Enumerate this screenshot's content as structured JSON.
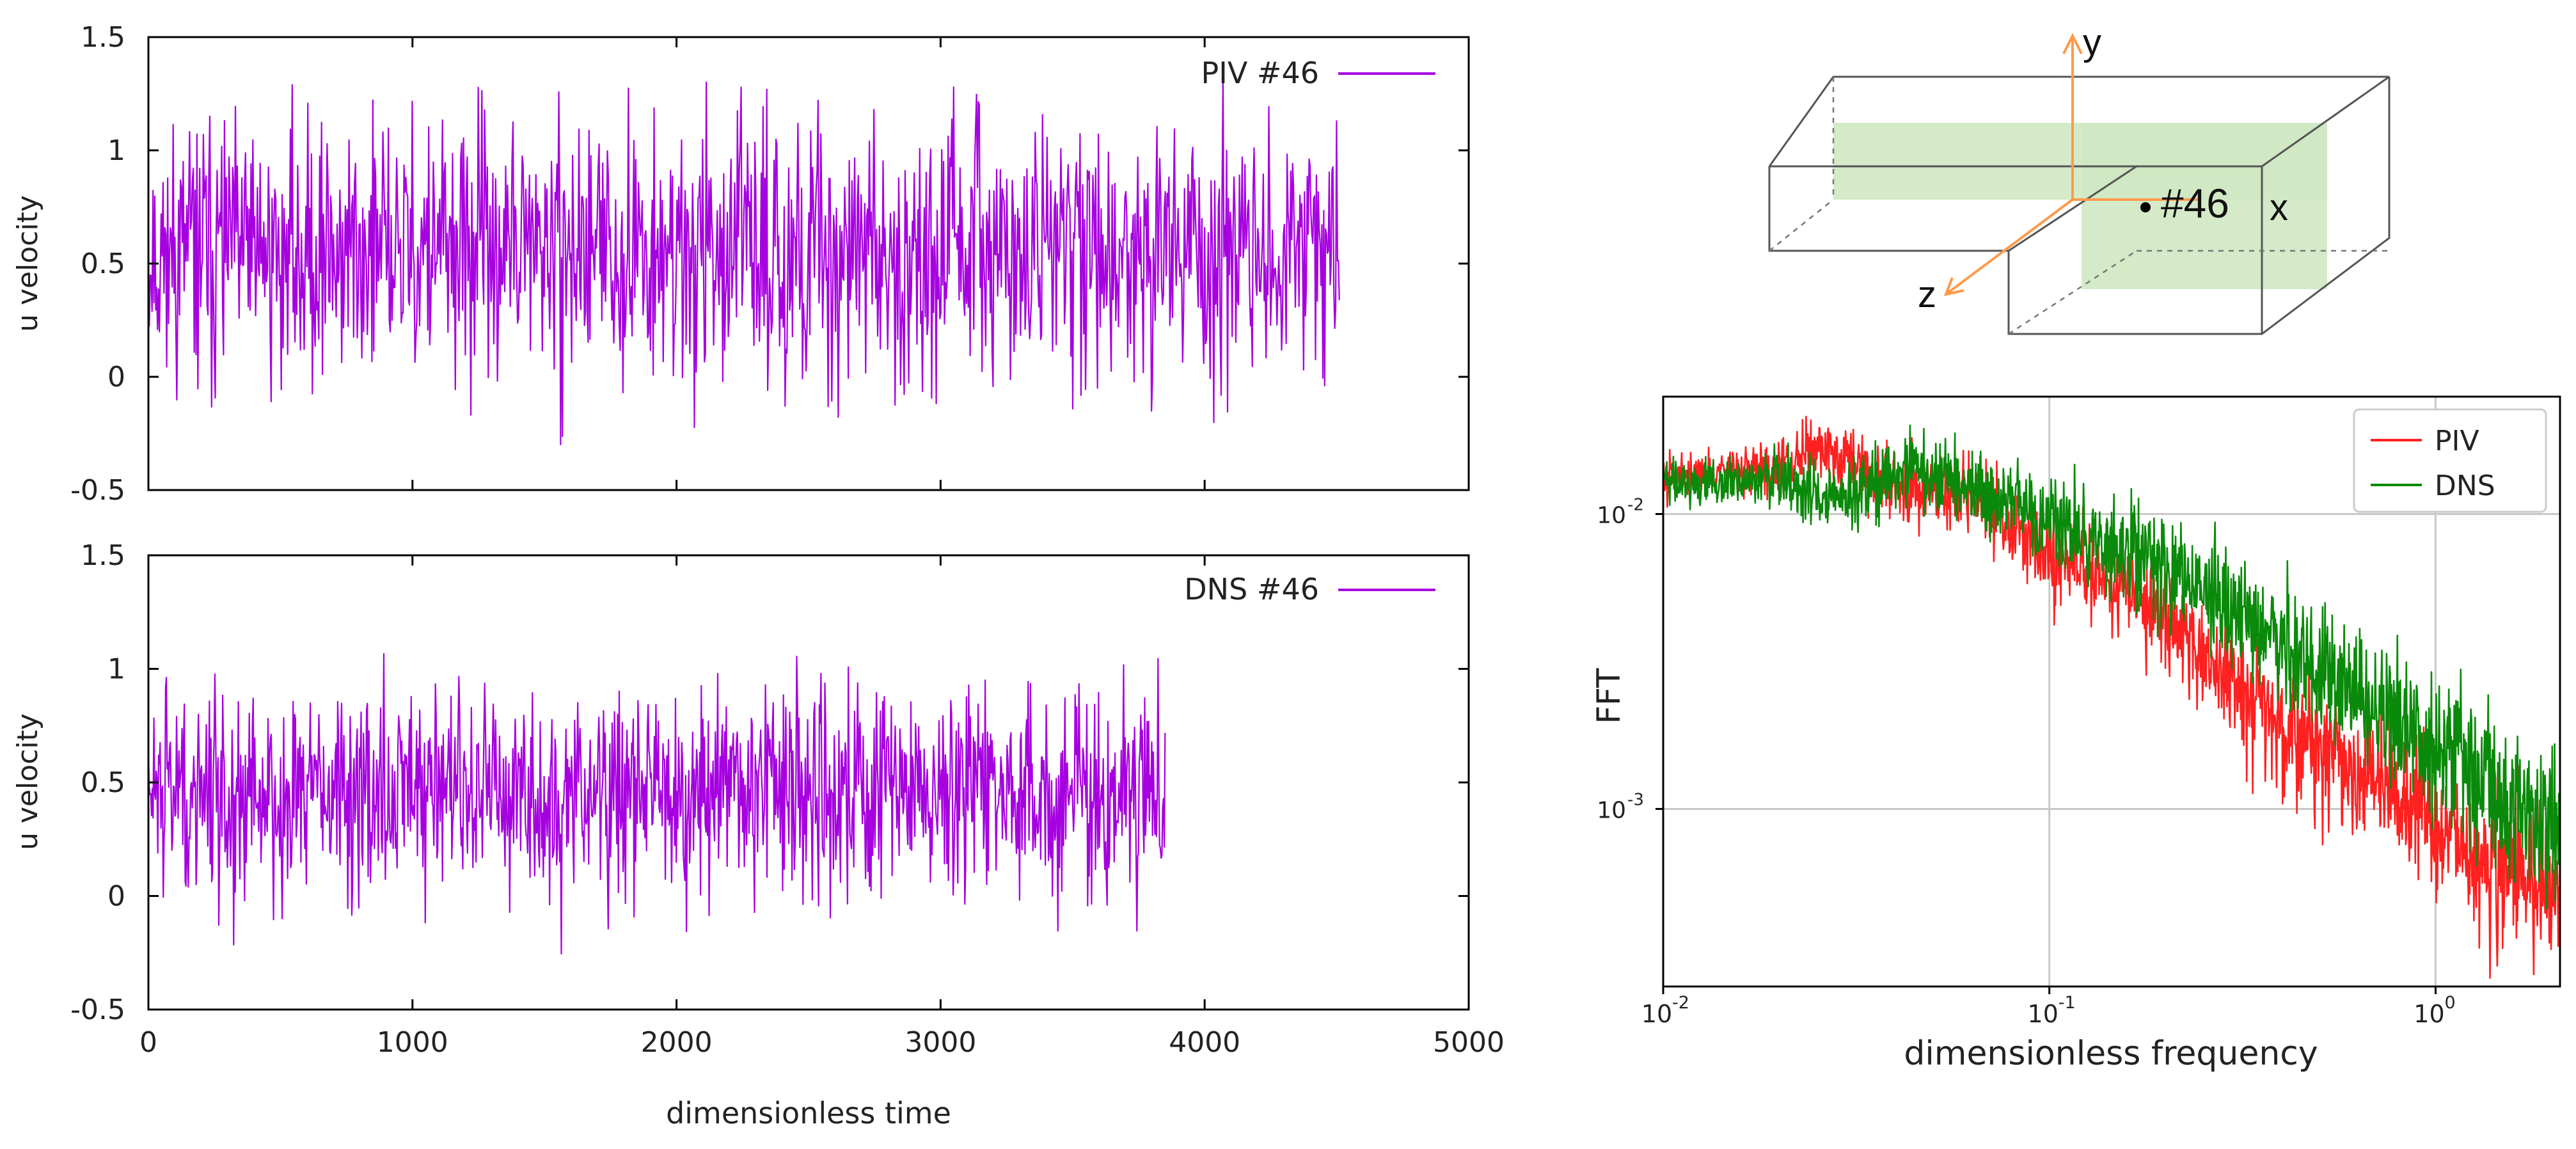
{
  "chart_data": [
    {
      "type": "line",
      "xlim": [
        0,
        5000
      ],
      "ylim": [
        -0.5,
        1.5
      ],
      "xticks": [
        "0",
        "1000",
        "2000",
        "3000",
        "4000",
        "5000"
      ],
      "yticks": [
        "-0.5",
        "0",
        "0.5",
        "1",
        "1.5"
      ],
      "xlabel": "",
      "ylabel": "u velocity",
      "legend_position": "top-right",
      "color": "#a600e0",
      "series": [
        {
          "name": "PIV #46",
          "x_range": [
            0,
            4510
          ],
          "mean": 0.55,
          "std": 0.28,
          "min": -0.5,
          "max": 1.5
        }
      ]
    },
    {
      "type": "line",
      "xlim": [
        0,
        5000
      ],
      "ylim": [
        -0.5,
        1.5
      ],
      "xticks": [
        "0",
        "1000",
        "2000",
        "3000",
        "4000",
        "5000"
      ],
      "yticks": [
        "-0.5",
        "0",
        "0.5",
        "1",
        "1.5"
      ],
      "xlabel": "dimensionless time",
      "ylabel": "u velocity",
      "legend_position": "top-right",
      "color": "#a600e0",
      "series": [
        {
          "name": "DNS #46",
          "x_range": [
            0,
            3850
          ],
          "mean": 0.45,
          "std": 0.22,
          "min": -0.37,
          "max": 1.32
        }
      ]
    },
    {
      "type": "line",
      "xscale": "log",
      "yscale": "log",
      "xlim": [
        0.01,
        2.1
      ],
      "ylim": [
        0.00025,
        0.025
      ],
      "xticks": [
        "10",
        "10",
        "10"
      ],
      "xtick_exponents": [
        "-2",
        "-1",
        "0"
      ],
      "yticks": [
        "10",
        "10"
      ],
      "ytick_exponents": [
        "-2",
        "-3"
      ],
      "xlabel": "dimensionless frequency",
      "ylabel": "FFT",
      "grid": true,
      "legend_position": "top-right",
      "series": [
        {
          "name": "PIV",
          "color": "#ff2020",
          "points": [
            [
              0.01,
              0.0135
            ],
            [
              0.02,
              0.0145
            ],
            [
              0.025,
              0.0175
            ],
            [
              0.04,
              0.0125
            ],
            [
              0.06,
              0.012
            ],
            [
              0.08,
              0.009
            ],
            [
              0.1,
              0.0075
            ],
            [
              0.2,
              0.0045
            ],
            [
              0.3,
              0.0027
            ],
            [
              0.5,
              0.0016
            ],
            [
              1.0,
              0.00085
            ],
            [
              2.0,
              0.0005
            ]
          ]
        },
        {
          "name": "DNS",
          "color": "#0a8a0a",
          "points": [
            [
              0.01,
              0.013
            ],
            [
              0.02,
              0.013
            ],
            [
              0.03,
              0.0115
            ],
            [
              0.045,
              0.015
            ],
            [
              0.06,
              0.0125
            ],
            [
              0.08,
              0.011
            ],
            [
              0.1,
              0.0095
            ],
            [
              0.2,
              0.0065
            ],
            [
              0.3,
              0.0045
            ],
            [
              0.5,
              0.003
            ],
            [
              1.0,
              0.0016
            ],
            [
              2.0,
              0.0008
            ]
          ]
        }
      ]
    }
  ],
  "diagram": {
    "axis_y": "y",
    "axis_z": "z",
    "axis_x": "x",
    "probe_label": "#46",
    "plane_color": "#cfe8c2",
    "axis_color": "#ff9a4a"
  }
}
